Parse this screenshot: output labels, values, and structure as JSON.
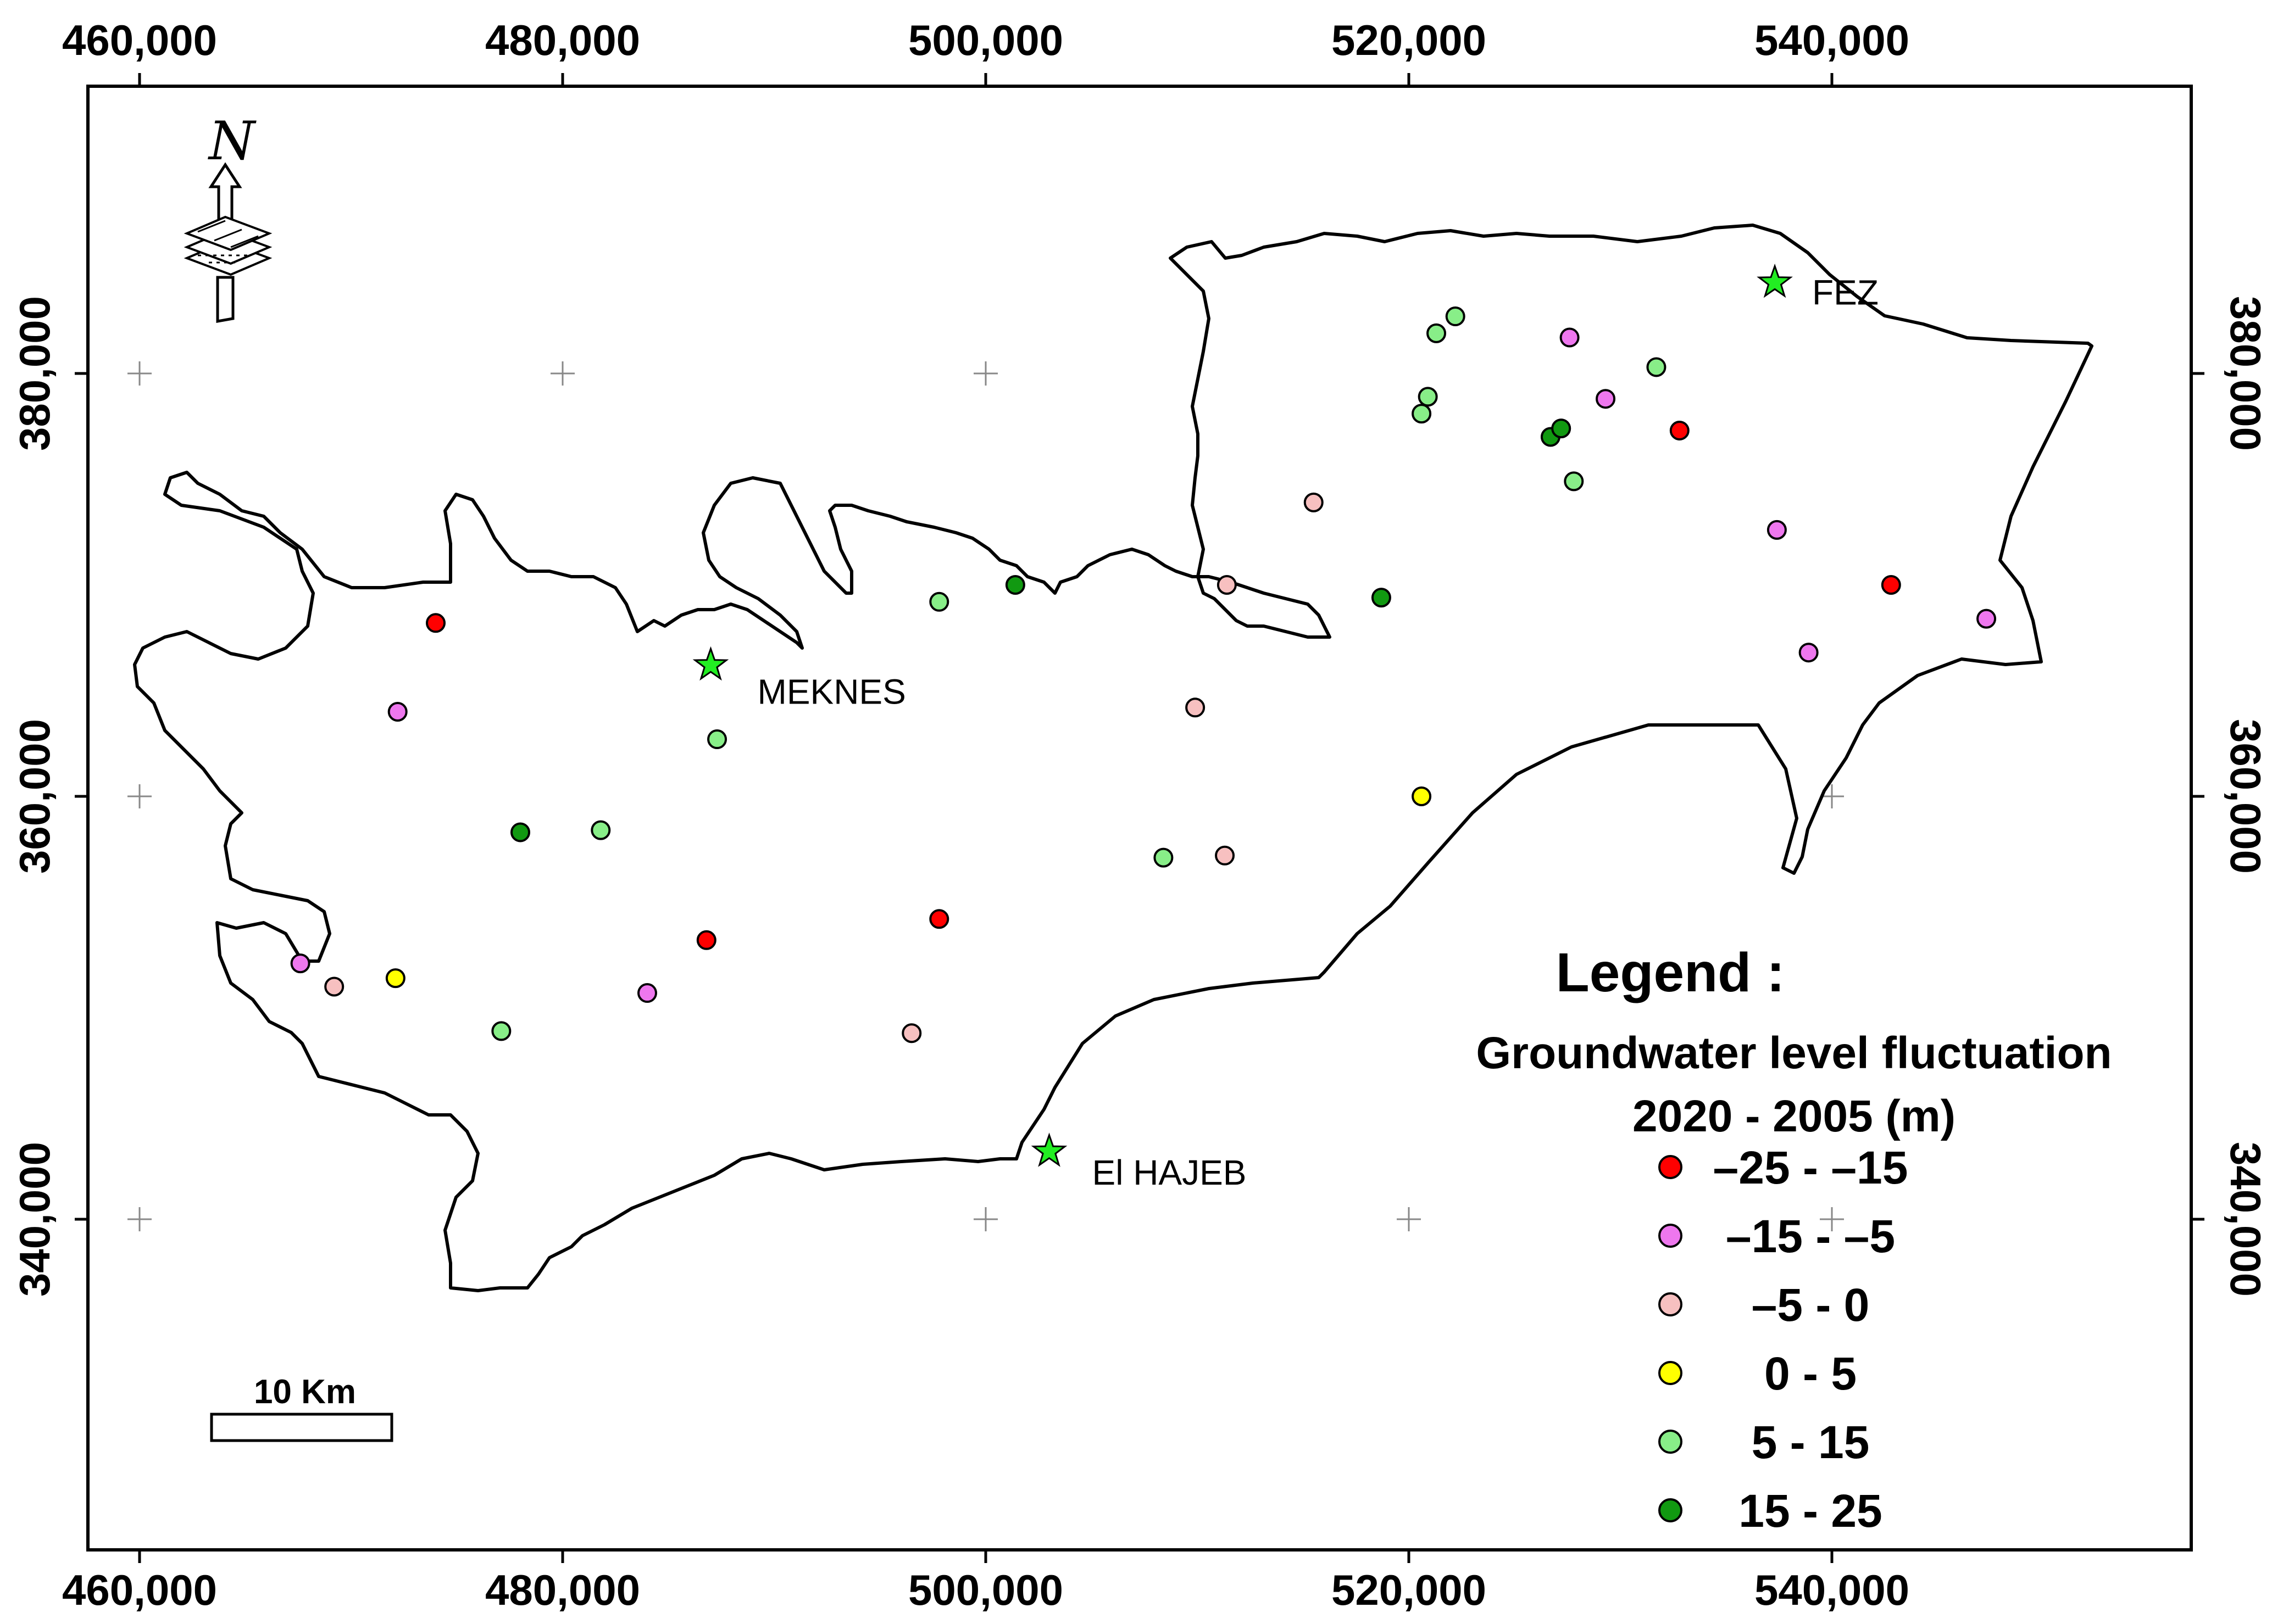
{
  "colors": {
    "c1": "#ff0000",
    "c2": "#ee77ee",
    "c3": "#f7c0c0",
    "c4": "#ffff00",
    "c5": "#88ee88",
    "c6": "#119911",
    "star": "#22ee22"
  },
  "axes": {
    "x_ticks": [
      "460,000",
      "480,000",
      "500,000",
      "520,000",
      "540,000"
    ],
    "y_ticks": [
      "380,000",
      "360,000",
      "340,000"
    ]
  },
  "cities": [
    {
      "name": "MEKNES",
      "x": 487000,
      "y": 366200
    },
    {
      "name": "FEZ",
      "x": 537300,
      "y": 384300
    },
    {
      "name": "El HAJEB",
      "x": 503000,
      "y": 343200
    }
  ],
  "scale_bar": {
    "label": "10 Km"
  },
  "north_arrow": {
    "label": "N"
  },
  "legend": {
    "title": "Legend :",
    "subtitle_1": "Groundwater level fluctuation",
    "subtitle_2": "2020 - 2005 (m)",
    "classes": [
      {
        "label": "–25 - –15",
        "color": "c1"
      },
      {
        "label": "–15 - –5",
        "color": "c2"
      },
      {
        "label": "–5 - 0",
        "color": "c3"
      },
      {
        "label": "0 - 5",
        "color": "c4"
      },
      {
        "label": "5 - 15",
        "color": "c5"
      },
      {
        "label": "15 - 25",
        "color": "c6"
      }
    ]
  },
  "wells": [
    {
      "x": 474000,
      "y": 368200,
      "c": "c1"
    },
    {
      "x": 486800,
      "y": 353200,
      "c": "c1"
    },
    {
      "x": 497800,
      "y": 354200,
      "c": "c1"
    },
    {
      "x": 532800,
      "y": 377300,
      "c": "c1"
    },
    {
      "x": 542800,
      "y": 370000,
      "c": "c1"
    },
    {
      "x": 472200,
      "y": 364000,
      "c": "c2"
    },
    {
      "x": 467600,
      "y": 352100,
      "c": "c2"
    },
    {
      "x": 484000,
      "y": 350700,
      "c": "c2"
    },
    {
      "x": 527600,
      "y": 381700,
      "c": "c2"
    },
    {
      "x": 529300,
      "y": 378800,
      "c": "c2"
    },
    {
      "x": 537400,
      "y": 372600,
      "c": "c2"
    },
    {
      "x": 538900,
      "y": 366800,
      "c": "c2"
    },
    {
      "x": 547300,
      "y": 368400,
      "c": "c2"
    },
    {
      "x": 469200,
      "y": 351000,
      "c": "c3"
    },
    {
      "x": 496500,
      "y": 348800,
      "c": "c3"
    },
    {
      "x": 509900,
      "y": 364200,
      "c": "c3"
    },
    {
      "x": 511300,
      "y": 357200,
      "c": "c3"
    },
    {
      "x": 511400,
      "y": 370000,
      "c": "c3"
    },
    {
      "x": 515500,
      "y": 373900,
      "c": "c3"
    },
    {
      "x": 472100,
      "y": 351400,
      "c": "c4"
    },
    {
      "x": 520600,
      "y": 360000,
      "c": "c4"
    },
    {
      "x": 477100,
      "y": 348900,
      "c": "c5"
    },
    {
      "x": 481800,
      "y": 358400,
      "c": "c5"
    },
    {
      "x": 487300,
      "y": 362700,
      "c": "c5"
    },
    {
      "x": 497800,
      "y": 369200,
      "c": "c5"
    },
    {
      "x": 508400,
      "y": 357100,
      "c": "c5"
    },
    {
      "x": 520600,
      "y": 378100,
      "c": "c5"
    },
    {
      "x": 520900,
      "y": 378900,
      "c": "c5"
    },
    {
      "x": 521300,
      "y": 381900,
      "c": "c5"
    },
    {
      "x": 522200,
      "y": 382700,
      "c": "c5"
    },
    {
      "x": 527800,
      "y": 374900,
      "c": "c5"
    },
    {
      "x": 531700,
      "y": 380300,
      "c": "c5"
    },
    {
      "x": 478000,
      "y": 358300,
      "c": "c6"
    },
    {
      "x": 501400,
      "y": 370000,
      "c": "c6"
    },
    {
      "x": 518700,
      "y": 369400,
      "c": "c6"
    },
    {
      "x": 526700,
      "y": 377000,
      "c": "c6"
    },
    {
      "x": 527200,
      "y": 377400,
      "c": "c6"
    }
  ]
}
